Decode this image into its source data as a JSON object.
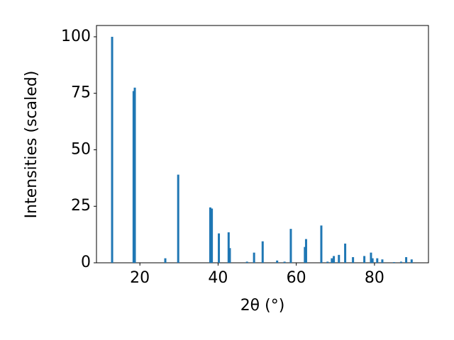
{
  "chart_data": {
    "type": "bar",
    "xlabel": "2θ (°)",
    "ylabel": "Intensities (scaled)",
    "x": [
      12.9,
      18.4,
      18.7,
      26.5,
      29.8,
      38.0,
      38.4,
      40.2,
      42.7,
      43.0,
      47.4,
      49.2,
      51.4,
      55.1,
      57.0,
      58.6,
      62.2,
      62.5,
      66.4,
      68.0,
      69.1,
      69.6,
      70.9,
      72.5,
      74.5,
      77.4,
      79.1,
      79.5,
      80.7,
      82.0,
      85.0,
      86.8,
      88.1,
      89.5
    ],
    "values": [
      100,
      76,
      77.5,
      2,
      39,
      24.5,
      24,
      13,
      13.5,
      6.5,
      0.5,
      4.5,
      9.5,
      1,
      0.5,
      15,
      7,
      10.5,
      16.5,
      0.5,
      2,
      3,
      3.5,
      8.5,
      2.5,
      3,
      4.5,
      2,
      2,
      1.5,
      0.3,
      0.5,
      2.5,
      1.5
    ],
    "color": "#1f77b4",
    "xlim": [
      8.9,
      93.8
    ],
    "ylim": [
      0,
      105
    ],
    "xticks": [
      20,
      40,
      60,
      80
    ],
    "yticks": [
      0,
      25,
      50,
      75,
      100
    ],
    "grid": false
  }
}
